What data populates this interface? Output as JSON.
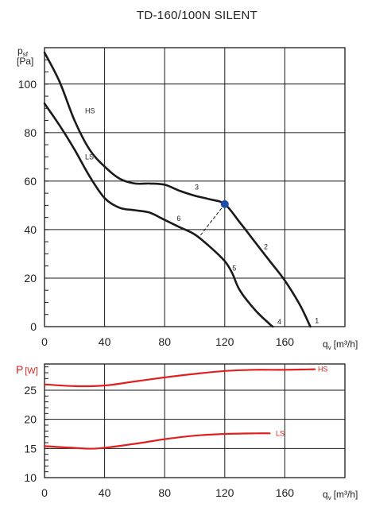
{
  "chart_data": [
    {
      "type": "line",
      "title": "TD-160/100N SILENT",
      "xlabel": "q",
      "xlabel_sub": "v",
      "xlabel_unit": "[m³/h]",
      "ylabel": "p",
      "ylabel_sub": "sf",
      "ylabel_unit": "[Pa]",
      "xlim": [
        0,
        200
      ],
      "ylim": [
        0,
        115
      ],
      "xticks": [
        0,
        40,
        80,
        120,
        160
      ],
      "yticks": [
        0,
        20,
        40,
        60,
        80,
        100
      ],
      "grid": true,
      "series": [
        {
          "name": "HS",
          "color": "#1a1a1a",
          "x": [
            0,
            10,
            20,
            30,
            40,
            50,
            60,
            70,
            80,
            90,
            100,
            110,
            120,
            130,
            140,
            150,
            160,
            170,
            177
          ],
          "y": [
            113,
            101,
            85,
            73,
            66,
            61,
            59,
            59,
            58.5,
            56,
            54,
            52.5,
            50.5,
            43,
            35,
            27,
            19,
            9,
            0
          ]
        },
        {
          "name": "LS",
          "color": "#1a1a1a",
          "x": [
            0,
            10,
            20,
            30,
            40,
            50,
            60,
            70,
            80,
            90,
            100,
            110,
            120,
            125,
            130,
            140,
            150,
            152
          ],
          "y": [
            92,
            83,
            73,
            62,
            53,
            49,
            48,
            47,
            44,
            41,
            38,
            33,
            27,
            22,
            15,
            7,
            1,
            0
          ]
        }
      ],
      "operating_point": {
        "x": 120,
        "y": 50.5,
        "color": "#1f4fa8"
      },
      "connector": {
        "from": [
          120,
          50.5
        ],
        "to": [
          103,
          37
        ]
      },
      "annotations": [
        {
          "text": "HS",
          "x": 27,
          "y": 89
        },
        {
          "text": "LS",
          "x": 27,
          "y": 70
        },
        {
          "text": "1",
          "x": 180,
          "y": 2.5
        },
        {
          "text": "2",
          "x": 146,
          "y": 33
        },
        {
          "text": "3",
          "x": 100,
          "y": 57.5
        },
        {
          "text": "4",
          "x": 155,
          "y": 2
        },
        {
          "text": "5",
          "x": 125,
          "y": 24
        },
        {
          "text": "6",
          "x": 88,
          "y": 44.5
        }
      ]
    },
    {
      "type": "line",
      "xlabel": "q",
      "xlabel_sub": "v",
      "xlabel_unit": "[m³/h]",
      "ylabel": "P",
      "ylabel_unit": "[W]",
      "xlim": [
        0,
        200
      ],
      "ylim": [
        10,
        29.5
      ],
      "xticks": [
        0,
        40,
        80,
        120,
        160
      ],
      "yticks": [
        10,
        15,
        20,
        25
      ],
      "grid": true,
      "series": [
        {
          "name": "HS",
          "color": "#e02020",
          "x": [
            0,
            20,
            40,
            60,
            80,
            100,
            120,
            140,
            160,
            180
          ],
          "y": [
            26,
            25.7,
            25.8,
            26.5,
            27.2,
            27.8,
            28.3,
            28.5,
            28.5,
            28.6
          ]
        },
        {
          "name": "LS",
          "color": "#e02020",
          "x": [
            0,
            20,
            35,
            60,
            80,
            100,
            120,
            140,
            150
          ],
          "y": [
            15.4,
            15.1,
            15,
            15.8,
            16.6,
            17.2,
            17.5,
            17.6,
            17.6
          ]
        }
      ],
      "annotations": [
        {
          "text": "HS",
          "x": 182,
          "y": 28.6
        },
        {
          "text": "LS",
          "x": 154,
          "y": 17.6
        }
      ]
    }
  ]
}
